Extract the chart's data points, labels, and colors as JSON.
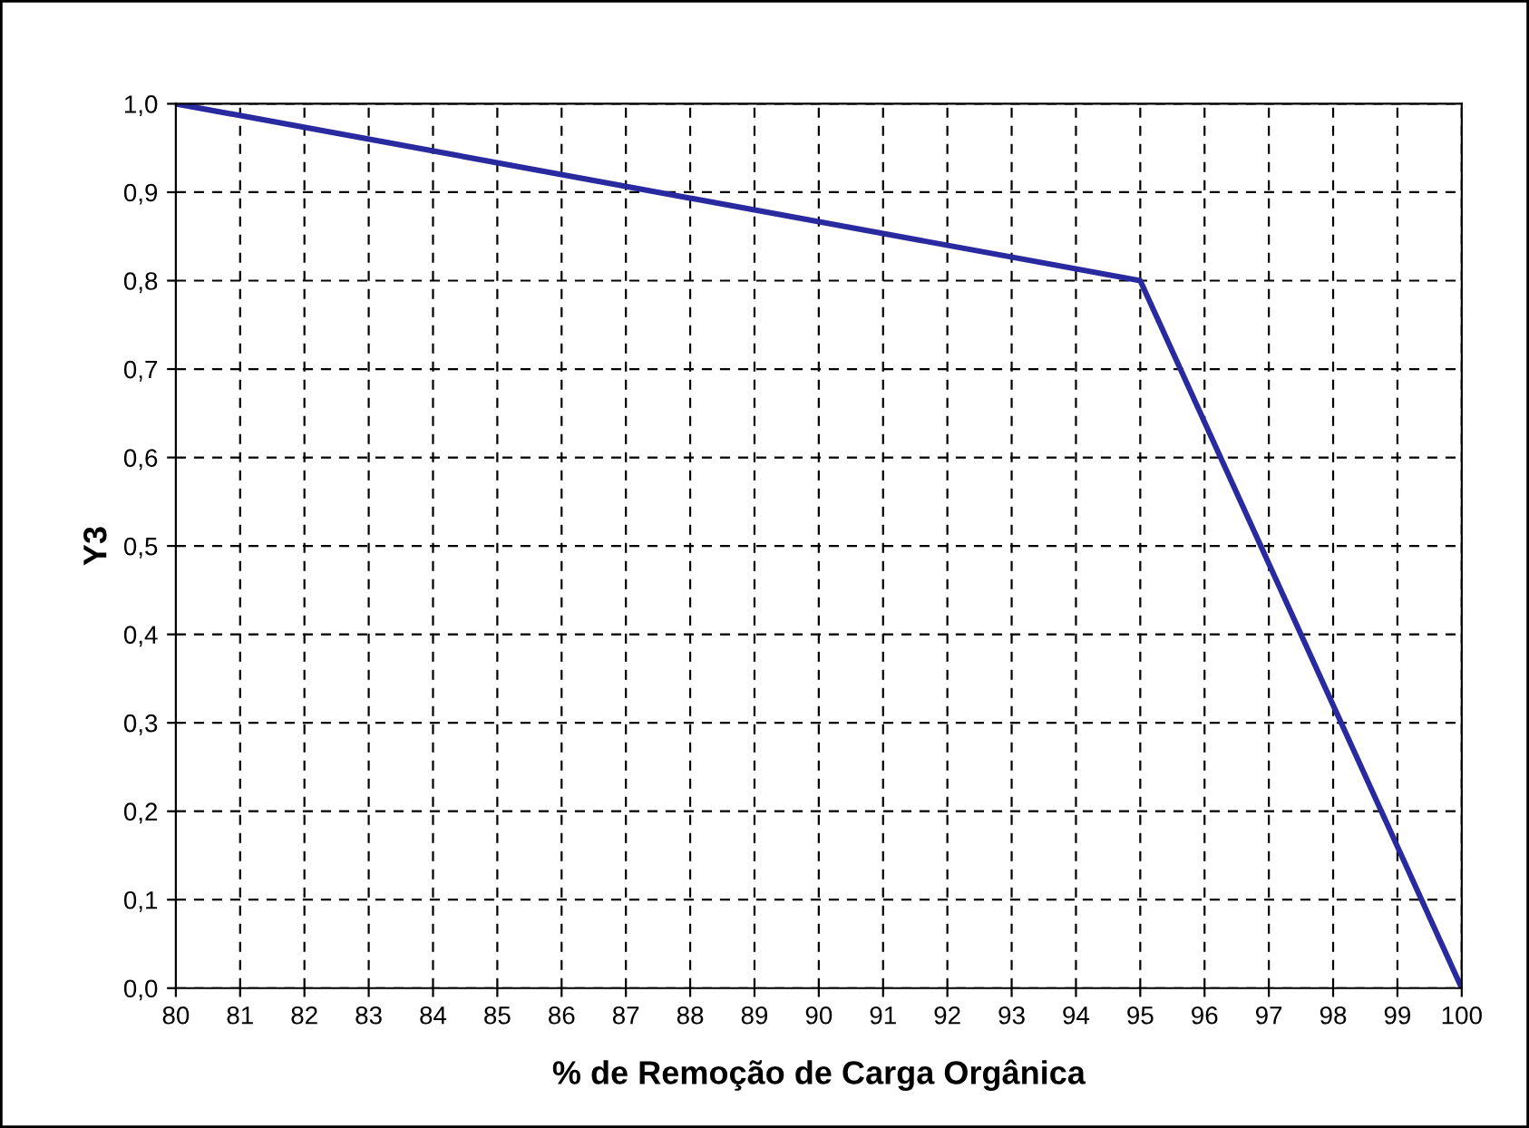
{
  "chart_data": {
    "type": "line",
    "xlabel": "% de Remoção de Carga Orgânica",
    "ylabel": "Y3",
    "x": [
      80,
      95,
      100
    ],
    "series": [
      {
        "color": "#2a2aa0",
        "values": [
          1.0,
          0.8,
          0.0
        ]
      }
    ],
    "xlim": [
      80,
      100
    ],
    "xticks": [
      80,
      81,
      82,
      83,
      84,
      85,
      86,
      87,
      88,
      89,
      90,
      91,
      92,
      93,
      94,
      95,
      96,
      97,
      98,
      99,
      100
    ],
    "ylim": [
      0,
      1
    ],
    "yticks": [
      {
        "value": 0,
        "label": "0,0"
      },
      {
        "value": 0.1,
        "label": "0,1"
      },
      {
        "value": 0.2,
        "label": "0,2"
      },
      {
        "value": 0.3,
        "label": "0,3"
      },
      {
        "value": 0.4,
        "label": "0,4"
      },
      {
        "value": 0.5,
        "label": "0,5"
      },
      {
        "value": 0.6,
        "label": "0,6"
      },
      {
        "value": 0.7,
        "label": "0,7"
      },
      {
        "value": 0.8,
        "label": "0,8"
      },
      {
        "value": 0.9,
        "label": "0,9"
      },
      {
        "value": 1.0,
        "label": "1,0"
      }
    ],
    "grid": true,
    "line_style": "solid",
    "marker": "none",
    "legend": false
  }
}
